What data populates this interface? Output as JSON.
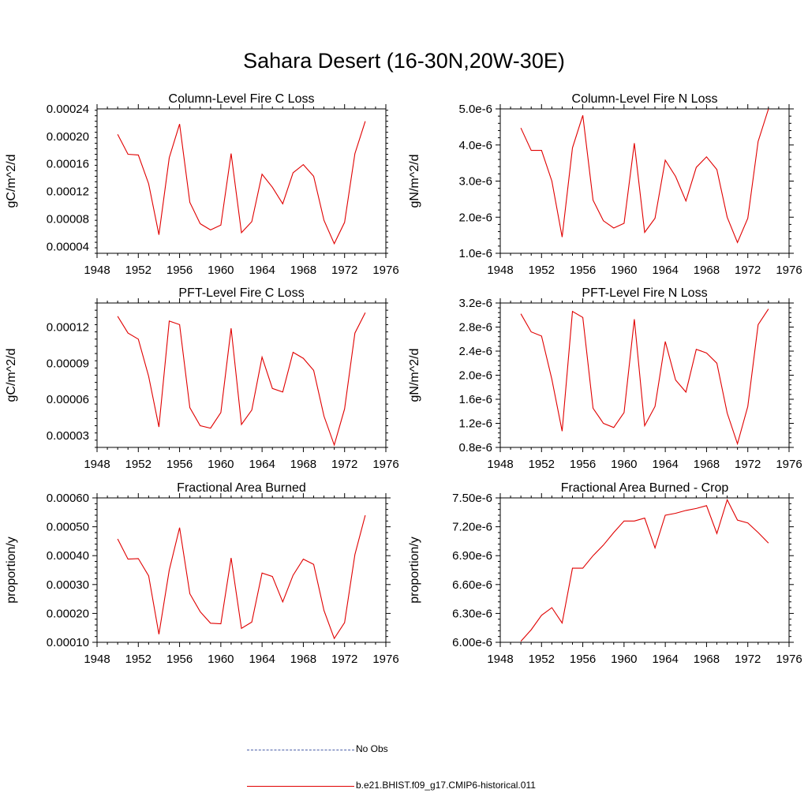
{
  "title": "Sahara Desert (16-30N,20W-30E)",
  "legend": [
    {
      "label": "No Obs",
      "color": "#4b5fa8",
      "style": "dashed"
    },
    {
      "label": "b.e21.BHIST.f09_g17.CMIP6-historical.011",
      "color": "#e00000",
      "style": "solid"
    }
  ],
  "chart_data": [
    {
      "type": "line",
      "title": "Column-Level Fire C Loss",
      "ylabel": "gC/m^2/d",
      "xlim": [
        1948,
        1976
      ],
      "xticks": [
        "1948",
        "1952",
        "1956",
        "1960",
        "1964",
        "1968",
        "1972",
        "1976"
      ],
      "ylim": [
        3e-05,
        0.00024
      ],
      "yticks": [
        "0.00004",
        "0.00008",
        "0.00012",
        "0.00016",
        "0.00020",
        "0.00024"
      ],
      "series": [
        {
          "color": "#e00000",
          "x": [
            1950,
            1951,
            1952,
            1953,
            1954,
            1955,
            1956,
            1957,
            1958,
            1959,
            1960,
            1961,
            1962,
            1963,
            1964,
            1965,
            1966,
            1967,
            1968,
            1969,
            1970,
            1971,
            1972,
            1973,
            1974
          ],
          "y": [
            0.000203,
            0.000174,
            0.000173,
            0.000131,
            5.7e-05,
            0.000169,
            0.000218,
            0.000104,
            7.3e-05,
            6.4e-05,
            7.1e-05,
            0.000175,
            6e-05,
            7.6e-05,
            0.000145,
            0.000126,
            0.000102,
            0.000147,
            0.000159,
            0.000142,
            7.8e-05,
            4.4e-05,
            7.5e-05,
            0.000175,
            0.000222
          ]
        }
      ]
    },
    {
      "type": "line",
      "title": "Column-Level Fire N Loss",
      "ylabel": "gN/m^2/d",
      "xlim": [
        1948,
        1976
      ],
      "xticks": [
        "1948",
        "1952",
        "1956",
        "1960",
        "1964",
        "1968",
        "1972",
        "1976"
      ],
      "ylim": [
        1e-06,
        5e-06
      ],
      "yticks": [
        "1.0e-6",
        "2.0e-6",
        "3.0e-6",
        "4.0e-6",
        "5.0e-6"
      ],
      "series": [
        {
          "color": "#e00000",
          "x": [
            1950,
            1951,
            1952,
            1953,
            1954,
            1955,
            1956,
            1957,
            1958,
            1959,
            1960,
            1961,
            1962,
            1963,
            1964,
            1965,
            1966,
            1967,
            1968,
            1969,
            1970,
            1971,
            1972,
            1973,
            1974
          ],
          "y": [
            4.47e-06,
            3.85e-06,
            3.85e-06,
            3e-06,
            1.45e-06,
            3.92e-06,
            4.82e-06,
            2.47e-06,
            1.9e-06,
            1.7e-06,
            1.83e-06,
            4.05e-06,
            1.58e-06,
            1.97e-06,
            3.58e-06,
            3.13e-06,
            2.45e-06,
            3.38e-06,
            3.67e-06,
            3.32e-06,
            2e-06,
            1.3e-06,
            1.97e-06,
            4.1e-06,
            5e-06
          ]
        }
      ]
    },
    {
      "type": "line",
      "title": "PFT-Level Fire C Loss",
      "ylabel": "gC/m^2/d",
      "xlim": [
        1948,
        1976
      ],
      "xticks": [
        "1948",
        "1952",
        "1956",
        "1960",
        "1964",
        "1968",
        "1972",
        "1976"
      ],
      "ylim": [
        2e-05,
        0.00014
      ],
      "yticks": [
        "0.00003",
        "0.00006",
        "0.00009",
        "0.00012"
      ],
      "series": [
        {
          "color": "#e00000",
          "x": [
            1950,
            1951,
            1952,
            1953,
            1954,
            1955,
            1956,
            1957,
            1958,
            1959,
            1960,
            1961,
            1962,
            1963,
            1964,
            1965,
            1966,
            1967,
            1968,
            1969,
            1970,
            1971,
            1972,
            1973,
            1974
          ],
          "y": [
            0.000129,
            0.000115,
            0.00011,
            7.9e-05,
            3.7e-05,
            0.000125,
            0.000122,
            5.3e-05,
            3.8e-05,
            3.6e-05,
            4.9e-05,
            0.000119,
            3.9e-05,
            5.1e-05,
            9.5e-05,
            6.9e-05,
            6.6e-05,
            9.9e-05,
            9.4e-05,
            8.4e-05,
            4.6e-05,
            2.2e-05,
            5.2e-05,
            0.000115,
            0.000132
          ]
        }
      ]
    },
    {
      "type": "line",
      "title": "PFT-Level Fire N Loss",
      "ylabel": "gN/m^2/d",
      "xlim": [
        1948,
        1976
      ],
      "xticks": [
        "1948",
        "1952",
        "1956",
        "1960",
        "1964",
        "1968",
        "1972",
        "1976"
      ],
      "ylim": [
        8e-07,
        3.2e-06
      ],
      "yticks": [
        "0.8e-6",
        "1.2e-6",
        "1.6e-6",
        "2.0e-6",
        "2.4e-6",
        "2.8e-6",
        "3.2e-6"
      ],
      "series": [
        {
          "color": "#e00000",
          "x": [
            1950,
            1951,
            1952,
            1953,
            1954,
            1955,
            1956,
            1957,
            1958,
            1959,
            1960,
            1961,
            1962,
            1963,
            1964,
            1965,
            1966,
            1967,
            1968,
            1969,
            1970,
            1971,
            1972,
            1973,
            1974
          ],
          "y": [
            3.02e-06,
            2.72e-06,
            2.65e-06,
            1.93e-06,
            1.07e-06,
            3.06e-06,
            2.96e-06,
            1.45e-06,
            1.2e-06,
            1.13e-06,
            1.38e-06,
            2.93e-06,
            1.16e-06,
            1.48e-06,
            2.56e-06,
            1.92e-06,
            1.72e-06,
            2.43e-06,
            2.37e-06,
            2.2e-06,
            1.37e-06,
            8.6e-07,
            1.48e-06,
            2.84e-06,
            3.1e-06
          ]
        }
      ]
    },
    {
      "type": "line",
      "title": "Fractional Area Burned",
      "ylabel": "proportion/y",
      "xlim": [
        1948,
        1976
      ],
      "xticks": [
        "1948",
        "1952",
        "1956",
        "1960",
        "1964",
        "1968",
        "1972",
        "1976"
      ],
      "ylim": [
        0.0001,
        0.0006
      ],
      "yticks": [
        "0.00010",
        "0.00020",
        "0.00030",
        "0.00040",
        "0.00050",
        "0.00060"
      ],
      "series": [
        {
          "color": "#e00000",
          "x": [
            1950,
            1951,
            1952,
            1953,
            1954,
            1955,
            1956,
            1957,
            1958,
            1959,
            1960,
            1961,
            1962,
            1963,
            1964,
            1965,
            1966,
            1967,
            1968,
            1969,
            1970,
            1971,
            1972,
            1973,
            1974
          ],
          "y": [
            0.000458,
            0.000388,
            0.00039,
            0.00033,
            0.000128,
            0.00035,
            0.000497,
            0.000268,
            0.000206,
            0.000166,
            0.000164,
            0.000392,
            0.000148,
            0.00017,
            0.00034,
            0.000328,
            0.00024,
            0.000332,
            0.000388,
            0.00037,
            0.00021,
            0.000113,
            0.000168,
            0.000404,
            0.00054
          ]
        }
      ]
    },
    {
      "type": "line",
      "title": "Fractional Area Burned - Crop",
      "ylabel": "proportion/y",
      "xlim": [
        1948,
        1976
      ],
      "xticks": [
        "1948",
        "1952",
        "1956",
        "1960",
        "1964",
        "1968",
        "1972",
        "1976"
      ],
      "ylim": [
        6e-06,
        7.5e-06
      ],
      "yticks": [
        "6.00e-6",
        "6.30e-6",
        "6.60e-6",
        "6.90e-6",
        "7.20e-6",
        "7.50e-6"
      ],
      "series": [
        {
          "color": "#e00000",
          "x": [
            1950,
            1951,
            1952,
            1953,
            1954,
            1955,
            1956,
            1957,
            1958,
            1959,
            1960,
            1961,
            1962,
            1963,
            1964,
            1965,
            1966,
            1967,
            1968,
            1969,
            1970,
            1971,
            1972,
            1973,
            1974
          ],
          "y": [
            6.01e-06,
            6.13e-06,
            6.28e-06,
            6.36e-06,
            6.2e-06,
            6.77e-06,
            6.77e-06,
            6.9e-06,
            7.01e-06,
            7.14e-06,
            7.26e-06,
            7.26e-06,
            7.29e-06,
            6.98e-06,
            7.32e-06,
            7.34e-06,
            7.37e-06,
            7.39e-06,
            7.42e-06,
            7.13e-06,
            7.48e-06,
            7.27e-06,
            7.24e-06,
            7.14e-06,
            7.03e-06
          ]
        }
      ]
    }
  ]
}
